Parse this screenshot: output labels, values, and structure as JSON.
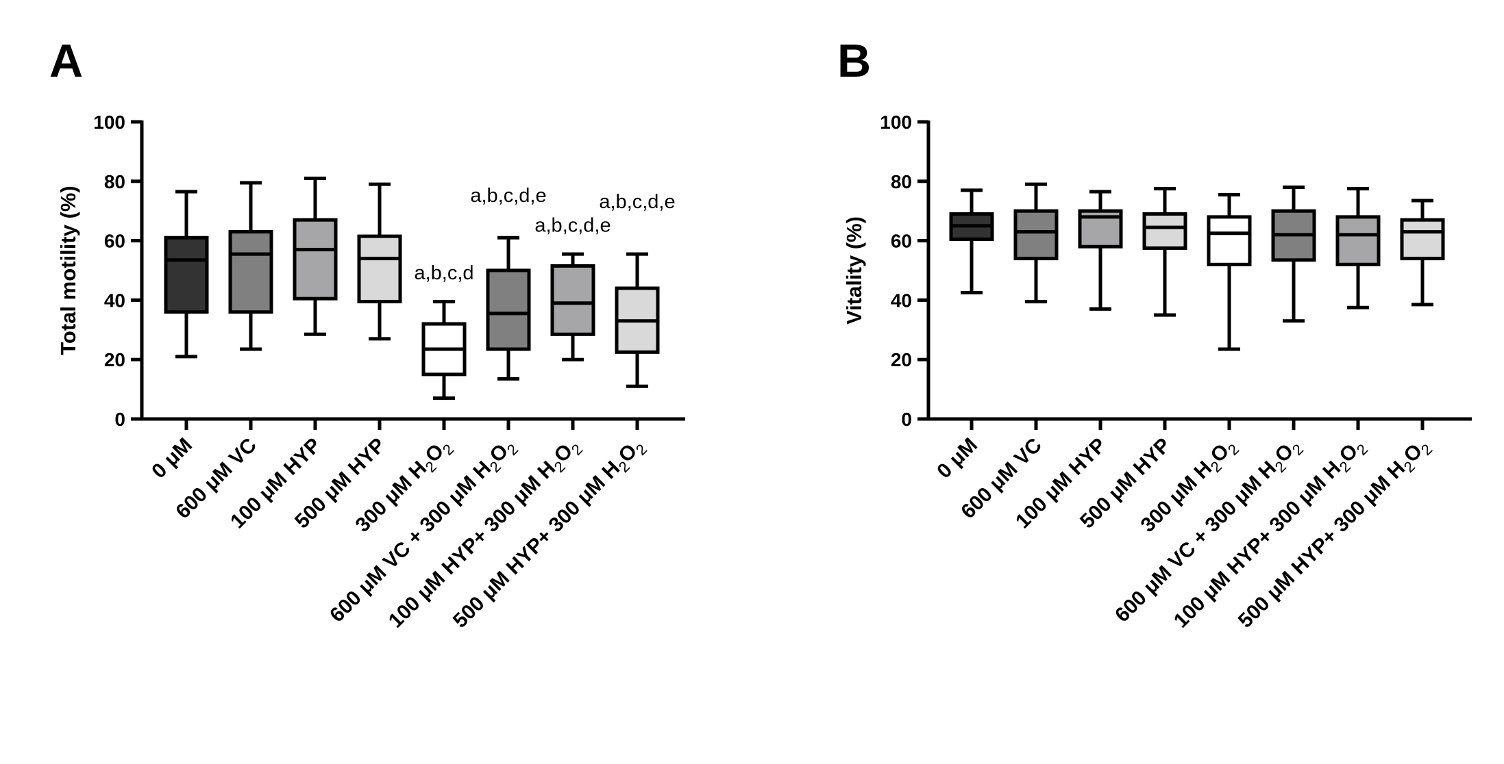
{
  "chart_data": [
    {
      "type": "box",
      "panel_label": "A",
      "ylabel": "Total motility (%)",
      "ylim": [
        0,
        100
      ],
      "yticks": [
        0,
        20,
        40,
        60,
        80,
        100
      ],
      "categories": [
        {
          "pre": "0 μM",
          "sub": "",
          "post": ""
        },
        {
          "pre": "600 μM VC",
          "sub": "",
          "post": ""
        },
        {
          "pre": "100 μM HYP",
          "sub": "",
          "post": ""
        },
        {
          "pre": "500 μM HYP",
          "sub": "",
          "post": ""
        },
        {
          "pre": "300 μM H",
          "sub": "2",
          "post": "O",
          "sub2": "2"
        },
        {
          "pre": "600 μM VC + 300 μM H",
          "sub": "2",
          "post": "O",
          "sub2": "2"
        },
        {
          "pre": "100 μM HYP+ 300 μM H",
          "sub": "2",
          "post": "O",
          "sub2": "2"
        },
        {
          "pre": "500 μM HYP+ 300 μM H",
          "sub": "2",
          "post": "O",
          "sub2": "2"
        }
      ],
      "boxes": [
        {
          "min": 21,
          "q1": 36,
          "median": 53.5,
          "q3": 61,
          "max": 76.5,
          "color": "#333333"
        },
        {
          "min": 23.5,
          "q1": 36,
          "median": 55.5,
          "q3": 63,
          "max": 79.5,
          "color": "#808080"
        },
        {
          "min": 28.5,
          "q1": 40.5,
          "median": 57,
          "q3": 67,
          "max": 81,
          "color": "#a6a6a8"
        },
        {
          "min": 27,
          "q1": 39.5,
          "median": 54,
          "q3": 61.5,
          "max": 79,
          "color": "#d9d9d9"
        },
        {
          "min": 7,
          "q1": 15,
          "median": 23.5,
          "q3": 32,
          "max": 39.5,
          "color": "#ffffff"
        },
        {
          "min": 13.5,
          "q1": 23.5,
          "median": 35.5,
          "q3": 50,
          "max": 61,
          "color": "#808080"
        },
        {
          "min": 20,
          "q1": 28.5,
          "median": 39,
          "q3": 51.5,
          "max": 55.5,
          "color": "#a6a6a8"
        },
        {
          "min": 11,
          "q1": 22.5,
          "median": 33,
          "q3": 44,
          "max": 55.5,
          "color": "#d9d9d9"
        }
      ],
      "annotations": [
        {
          "index": 4,
          "text": "a,b,c,d",
          "y": 47
        },
        {
          "index": 5,
          "text": "a,b,c,d,e",
          "y": 73
        },
        {
          "index": 6,
          "text": "a,b,c,d,e",
          "y": 63
        },
        {
          "index": 7,
          "text": "a,b,c,d,e",
          "y": 71
        }
      ]
    },
    {
      "type": "box",
      "panel_label": "B",
      "ylabel": "Vitality (%)",
      "ylim": [
        0,
        100
      ],
      "yticks": [
        0,
        20,
        40,
        60,
        80,
        100
      ],
      "categories": [
        {
          "pre": "0 μM",
          "sub": "",
          "post": ""
        },
        {
          "pre": "600 μM VC",
          "sub": "",
          "post": ""
        },
        {
          "pre": "100 μM HYP",
          "sub": "",
          "post": ""
        },
        {
          "pre": "500 μM HYP",
          "sub": "",
          "post": ""
        },
        {
          "pre": "300 μM H",
          "sub": "2",
          "post": "O",
          "sub2": "2"
        },
        {
          "pre": "600 μM VC + 300 μM H",
          "sub": "2",
          "post": "O",
          "sub2": "2"
        },
        {
          "pre": "100 μM HYP+ 300 μM H",
          "sub": "2",
          "post": "O",
          "sub2": "2"
        },
        {
          "pre": "500 μM HYP+ 300 μM H",
          "sub": "2",
          "post": "O",
          "sub2": "2"
        }
      ],
      "boxes": [
        {
          "min": 42.5,
          "q1": 60.5,
          "median": 65,
          "q3": 69,
          "max": 77,
          "color": "#333333"
        },
        {
          "min": 39.5,
          "q1": 54,
          "median": 63,
          "q3": 70,
          "max": 79,
          "color": "#808080"
        },
        {
          "min": 37,
          "q1": 58,
          "median": 68,
          "q3": 70,
          "max": 76.5,
          "color": "#a6a6a8"
        },
        {
          "min": 35,
          "q1": 57.5,
          "median": 64.5,
          "q3": 69,
          "max": 77.5,
          "color": "#d9d9d9"
        },
        {
          "min": 23.5,
          "q1": 52,
          "median": 62.5,
          "q3": 68,
          "max": 75.5,
          "color": "#ffffff"
        },
        {
          "min": 33,
          "q1": 53.5,
          "median": 62,
          "q3": 70,
          "max": 78,
          "color": "#808080"
        },
        {
          "min": 37.5,
          "q1": 52,
          "median": 62,
          "q3": 68,
          "max": 77.5,
          "color": "#a6a6a8"
        },
        {
          "min": 38.5,
          "q1": 54,
          "median": 63,
          "q3": 67,
          "max": 73.5,
          "color": "#d9d9d9"
        }
      ],
      "annotations": []
    }
  ]
}
